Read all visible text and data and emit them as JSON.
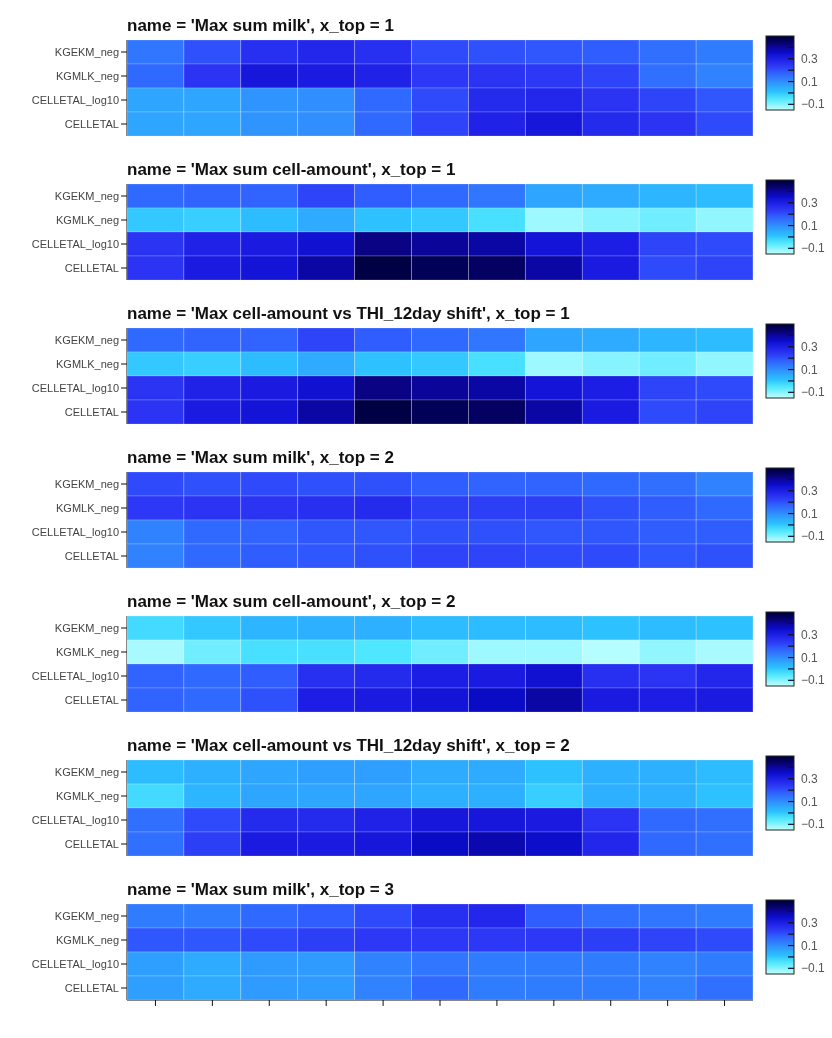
{
  "chart_data": [
    {
      "type": "heatmap",
      "title": "name = 'Max sum milk', x_top = 1",
      "categories": [
        null,
        null,
        null,
        null,
        null,
        null,
        null,
        null,
        null,
        null,
        null
      ],
      "y_categories": [
        "KGEKM_neg",
        "KGMLK_neg",
        "CELLETAL_log10",
        "CELLETAL"
      ],
      "tick_labels": "y",
      "clim": [
        -0.15,
        0.5
      ],
      "cticks": [
        {
          "value": -0.1,
          "label": "−0.1"
        },
        {
          "value": 0,
          "label": null
        },
        {
          "value": 0.1,
          "label": "0.1"
        },
        {
          "value": 0.2,
          "label": null
        },
        {
          "value": 0.3,
          "label": "0.3"
        },
        {
          "value": 0.4,
          "label": null
        }
      ],
      "cells": [
        [
          0.14,
          0.2,
          0.26,
          0.28,
          0.26,
          0.21,
          0.2,
          0.19,
          0.18,
          0.15,
          0.13
        ],
        [
          0.16,
          0.25,
          0.32,
          0.31,
          0.29,
          0.24,
          0.25,
          0.24,
          0.22,
          0.15,
          0.12
        ],
        [
          0.06,
          0.06,
          0.09,
          0.1,
          0.16,
          0.21,
          0.27,
          0.28,
          0.25,
          0.22,
          0.19
        ],
        [
          0.06,
          0.06,
          0.09,
          0.1,
          0.16,
          0.22,
          0.29,
          0.32,
          0.27,
          0.25,
          0.21
        ]
      ]
    },
    {
      "type": "heatmap",
      "title": "name = 'Max sum cell-amount', x_top = 1",
      "categories": [
        null,
        null,
        null,
        null,
        null,
        null,
        null,
        null,
        null,
        null,
        null
      ],
      "y_categories": [
        "KGEKM_neg",
        "KGMLK_neg",
        "CELLETAL_log10",
        "CELLETAL"
      ],
      "tick_labels": "y",
      "clim": [
        -0.15,
        0.5
      ],
      "cticks": [
        {
          "value": -0.1,
          "label": "−0.1"
        },
        {
          "value": 0,
          "label": null
        },
        {
          "value": 0.1,
          "label": "0.1"
        },
        {
          "value": 0.2,
          "label": null
        },
        {
          "value": 0.3,
          "label": "0.3"
        },
        {
          "value": 0.4,
          "label": null
        }
      ],
      "cells": [
        [
          0.16,
          0.17,
          0.17,
          0.22,
          0.18,
          0.16,
          0.14,
          0.06,
          0.05,
          0.03,
          0.02
        ],
        [
          0.0,
          -0.01,
          0.02,
          0.05,
          0.01,
          0.0,
          -0.04,
          -0.12,
          -0.1,
          -0.08,
          -0.11
        ],
        [
          0.25,
          0.29,
          0.31,
          0.34,
          0.42,
          0.4,
          0.39,
          0.33,
          0.3,
          0.22,
          0.21
        ],
        [
          0.25,
          0.31,
          0.33,
          0.39,
          0.49,
          0.46,
          0.45,
          0.39,
          0.31,
          0.21,
          0.22
        ]
      ]
    },
    {
      "type": "heatmap",
      "title": "name = 'Max cell-amount vs THI_12day shift', x_top = 1",
      "categories": [
        null,
        null,
        null,
        null,
        null,
        null,
        null,
        null,
        null,
        null,
        null
      ],
      "y_categories": [
        "KGEKM_neg",
        "KGMLK_neg",
        "CELLETAL_log10",
        "CELLETAL"
      ],
      "tick_labels": "y",
      "clim": [
        -0.15,
        0.5
      ],
      "cticks": [
        {
          "value": -0.1,
          "label": "−0.1"
        },
        {
          "value": 0,
          "label": null
        },
        {
          "value": 0.1,
          "label": "0.1"
        },
        {
          "value": 0.2,
          "label": null
        },
        {
          "value": 0.3,
          "label": "0.3"
        },
        {
          "value": 0.4,
          "label": null
        }
      ],
      "cells": [
        [
          0.16,
          0.17,
          0.17,
          0.22,
          0.18,
          0.16,
          0.14,
          0.06,
          0.05,
          0.03,
          0.02
        ],
        [
          0.0,
          -0.01,
          0.02,
          0.05,
          0.01,
          0.0,
          -0.04,
          -0.12,
          -0.1,
          -0.08,
          -0.11
        ],
        [
          0.25,
          0.29,
          0.31,
          0.34,
          0.42,
          0.4,
          0.39,
          0.33,
          0.3,
          0.22,
          0.21
        ],
        [
          0.25,
          0.31,
          0.33,
          0.39,
          0.49,
          0.46,
          0.45,
          0.39,
          0.31,
          0.21,
          0.22
        ]
      ]
    },
    {
      "type": "heatmap",
      "title": "name = 'Max sum milk', x_top = 2",
      "categories": [
        null,
        null,
        null,
        null,
        null,
        null,
        null,
        null,
        null,
        null,
        null
      ],
      "y_categories": [
        "KGEKM_neg",
        "KGMLK_neg",
        "CELLETAL_log10",
        "CELLETAL"
      ],
      "tick_labels": "y",
      "clim": [
        -0.15,
        0.5
      ],
      "cticks": [
        {
          "value": -0.1,
          "label": "−0.1"
        },
        {
          "value": 0,
          "label": null
        },
        {
          "value": 0.1,
          "label": "0.1"
        },
        {
          "value": 0.2,
          "label": null
        },
        {
          "value": 0.3,
          "label": "0.3"
        },
        {
          "value": 0.4,
          "label": null
        }
      ],
      "cells": [
        [
          0.21,
          0.2,
          0.21,
          0.2,
          0.2,
          0.18,
          0.17,
          0.17,
          0.16,
          0.15,
          0.12
        ],
        [
          0.24,
          0.25,
          0.25,
          0.26,
          0.27,
          0.23,
          0.23,
          0.23,
          0.2,
          0.18,
          0.16
        ],
        [
          0.12,
          0.16,
          0.17,
          0.19,
          0.19,
          0.2,
          0.2,
          0.19,
          0.19,
          0.18,
          0.18
        ],
        [
          0.12,
          0.16,
          0.18,
          0.19,
          0.2,
          0.22,
          0.22,
          0.21,
          0.21,
          0.19,
          0.2
        ]
      ]
    },
    {
      "type": "heatmap",
      "title": "name = 'Max sum cell-amount', x_top = 2",
      "categories": [
        null,
        null,
        null,
        null,
        null,
        null,
        null,
        null,
        null,
        null,
        null
      ],
      "y_categories": [
        "KGEKM_neg",
        "KGMLK_neg",
        "CELLETAL_log10",
        "CELLETAL"
      ],
      "tick_labels": "y",
      "clim": [
        -0.15,
        0.5
      ],
      "cticks": [
        {
          "value": -0.1,
          "label": "−0.1"
        },
        {
          "value": 0,
          "label": null
        },
        {
          "value": 0.1,
          "label": "0.1"
        },
        {
          "value": 0.2,
          "label": null
        },
        {
          "value": 0.3,
          "label": "0.3"
        },
        {
          "value": 0.4,
          "label": null
        }
      ],
      "cells": [
        [
          -0.03,
          0.0,
          0.03,
          0.04,
          0.04,
          0.02,
          0.02,
          0.02,
          0.01,
          0.02,
          0.01
        ],
        [
          -0.13,
          -0.08,
          -0.04,
          -0.04,
          -0.05,
          -0.08,
          -0.12,
          -0.12,
          -0.14,
          -0.11,
          -0.13
        ],
        [
          0.17,
          0.16,
          0.18,
          0.26,
          0.27,
          0.3,
          0.31,
          0.34,
          0.26,
          0.25,
          0.28
        ],
        [
          0.17,
          0.16,
          0.2,
          0.3,
          0.31,
          0.33,
          0.36,
          0.39,
          0.31,
          0.3,
          0.31
        ]
      ]
    },
    {
      "type": "heatmap",
      "title": "name = 'Max cell-amount vs THI_12day shift', x_top = 2",
      "categories": [
        null,
        null,
        null,
        null,
        null,
        null,
        null,
        null,
        null,
        null,
        null
      ],
      "y_categories": [
        "KGEKM_neg",
        "KGMLK_neg",
        "CELLETAL_log10",
        "CELLETAL"
      ],
      "tick_labels": "y",
      "clim": [
        -0.15,
        0.5
      ],
      "cticks": [
        {
          "value": -0.1,
          "label": "−0.1"
        },
        {
          "value": 0,
          "label": null
        },
        {
          "value": 0.1,
          "label": "0.1"
        },
        {
          "value": 0.2,
          "label": null
        },
        {
          "value": 0.3,
          "label": "0.3"
        },
        {
          "value": 0.4,
          "label": null
        }
      ],
      "cells": [
        [
          0.02,
          0.04,
          0.06,
          0.07,
          0.07,
          0.05,
          0.05,
          0.01,
          0.04,
          0.04,
          0.02
        ],
        [
          -0.03,
          0.03,
          0.06,
          0.06,
          0.06,
          0.04,
          0.04,
          -0.01,
          0.04,
          0.04,
          0.01
        ],
        [
          0.15,
          0.21,
          0.27,
          0.27,
          0.29,
          0.32,
          0.32,
          0.31,
          0.25,
          0.16,
          0.15
        ],
        [
          0.15,
          0.23,
          0.31,
          0.31,
          0.32,
          0.36,
          0.38,
          0.35,
          0.28,
          0.16,
          0.15
        ]
      ]
    },
    {
      "type": "heatmap",
      "title": "name = 'Max sum milk', x_top = 3",
      "categories": [
        null,
        null,
        null,
        null,
        null,
        null,
        null,
        null,
        null,
        null,
        null
      ],
      "y_categories": [
        "KGEKM_neg",
        "KGMLK_neg",
        "CELLETAL_log10",
        "CELLETAL"
      ],
      "clim": [
        -0.15,
        0.5
      ],
      "cticks": [
        {
          "value": -0.1,
          "label": "−0.1"
        },
        {
          "value": 0,
          "label": null
        },
        {
          "value": 0.1,
          "label": "0.1"
        },
        {
          "value": 0.2,
          "label": null
        },
        {
          "value": 0.3,
          "label": "0.3"
        },
        {
          "value": 0.4,
          "label": null
        }
      ],
      "cells": [
        [
          0.13,
          0.13,
          0.16,
          0.18,
          0.21,
          0.26,
          0.28,
          0.18,
          0.15,
          0.14,
          0.13
        ],
        [
          0.19,
          0.19,
          0.21,
          0.23,
          0.24,
          0.24,
          0.24,
          0.24,
          0.23,
          0.22,
          0.21
        ],
        [
          0.07,
          0.05,
          0.08,
          0.08,
          0.12,
          0.14,
          0.13,
          0.13,
          0.13,
          0.12,
          0.13
        ],
        [
          0.07,
          0.05,
          0.08,
          0.08,
          0.12,
          0.16,
          0.13,
          0.13,
          0.13,
          0.12,
          0.15
        ]
      ]
    }
  ]
}
